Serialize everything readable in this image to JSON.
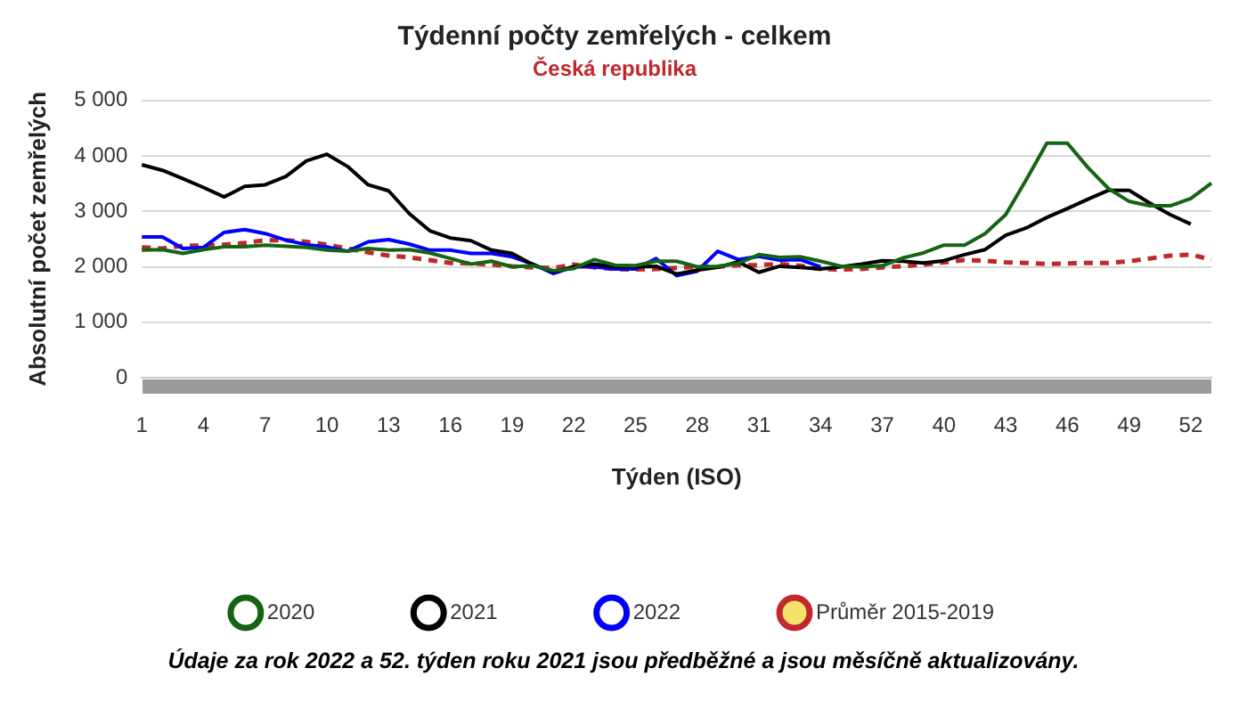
{
  "chart_data": {
    "type": "line",
    "title": "Týdenní počty zemřelých - celkem",
    "subtitle": "Česká republika",
    "xlabel": "Týden (ISO)",
    "ylabel": "Absolutní počet zemřelých",
    "categories": [
      "1",
      null,
      null,
      "4",
      null,
      null,
      "7",
      null,
      null,
      "10",
      null,
      null,
      "13",
      null,
      null,
      "16",
      null,
      null,
      "19",
      null,
      null,
      "22",
      null,
      null,
      "25",
      null,
      null,
      "28",
      null,
      null,
      "31",
      null,
      null,
      "34",
      null,
      null,
      "37",
      null,
      null,
      "40",
      null,
      null,
      "43",
      null,
      null,
      "46",
      null,
      null,
      "49",
      null,
      null,
      "52",
      null
    ],
    "series": [
      {
        "name": "2020",
        "color": "#146414",
        "values": [
          2300,
          2310,
          2240,
          2310,
          2360,
          2360,
          2390,
          2370,
          2350,
          2300,
          2280,
          2330,
          2300,
          2310,
          2250,
          2150,
          2050,
          2100,
          2000,
          2020,
          1930,
          1970,
          2130,
          2030,
          2020,
          2100,
          2100,
          2000,
          2010,
          2060,
          2220,
          2170,
          2180,
          2100,
          2010,
          2000,
          2020,
          2160,
          2250,
          2390,
          2390,
          2600,
          2940,
          3570,
          4230,
          4230,
          3790,
          3410,
          3180,
          3100,
          3100,
          3230,
          3510
        ]
      },
      {
        "name": "2021",
        "color": "#000000",
        "values": [
          3840,
          3740,
          3590,
          3430,
          3260,
          3450,
          3480,
          3630,
          3910,
          4030,
          3810,
          3480,
          3370,
          2960,
          2650,
          2520,
          2470,
          2300,
          2240,
          2040,
          1910,
          2000,
          2050,
          2000,
          2000,
          2010,
          1870,
          1940,
          1990,
          2090,
          1900,
          2010,
          1990,
          1960,
          2000,
          2050,
          2110,
          2100,
          2070,
          2110,
          2220,
          2310,
          2570,
          2700,
          2890,
          3050,
          3220,
          3380,
          3380,
          3150,
          2940,
          2770,
          null
        ]
      },
      {
        "name": "2022",
        "color": "#0000ff",
        "values": [
          2540,
          2540,
          2330,
          2350,
          2620,
          2670,
          2600,
          2480,
          2400,
          2360,
          2280,
          2450,
          2490,
          2410,
          2300,
          2300,
          2240,
          2240,
          2180,
          2050,
          1880,
          2000,
          2000,
          1960,
          1960,
          2150,
          1840,
          1920,
          2280,
          2130,
          2190,
          2120,
          2130,
          2000,
          null,
          null,
          null,
          null,
          null,
          null,
          null,
          null,
          null,
          null,
          null,
          null,
          null,
          null,
          null,
          null,
          null,
          null,
          null
        ]
      },
      {
        "name": "Průměr 2015-2019",
        "color": "#c0282d",
        "line_style": "dashed",
        "values": [
          2350,
          2330,
          2380,
          2380,
          2400,
          2430,
          2480,
          2480,
          2450,
          2400,
          2330,
          2260,
          2200,
          2170,
          2120,
          2070,
          2060,
          2040,
          2010,
          1990,
          1980,
          2040,
          1990,
          1960,
          1950,
          1960,
          1980,
          2000,
          2000,
          2030,
          2030,
          2050,
          2020,
          1960,
          1950,
          1960,
          1990,
          2010,
          2040,
          2080,
          2120,
          2110,
          2080,
          2070,
          2050,
          2060,
          2070,
          2070,
          2100,
          2150,
          2200,
          2220,
          2130
        ]
      }
    ],
    "ylim": [
      0,
      5000
    ],
    "yticks": [
      {
        "value": 0,
        "label": "0"
      },
      {
        "value": 1000,
        "label": "1 000"
      },
      {
        "value": 2000,
        "label": "2 000"
      },
      {
        "value": 3000,
        "label": "3 000"
      },
      {
        "value": 4000,
        "label": "4 000"
      },
      {
        "value": 5000,
        "label": "5 000"
      }
    ],
    "grid": "y",
    "legend": "bottom",
    "marker": "none",
    "line_style": "solid",
    "annotations": [
      "Údaje za rok 2022 a 52. týden roku 2021 jsou předběžné a jsou měsíčně aktualizovány."
    ]
  }
}
